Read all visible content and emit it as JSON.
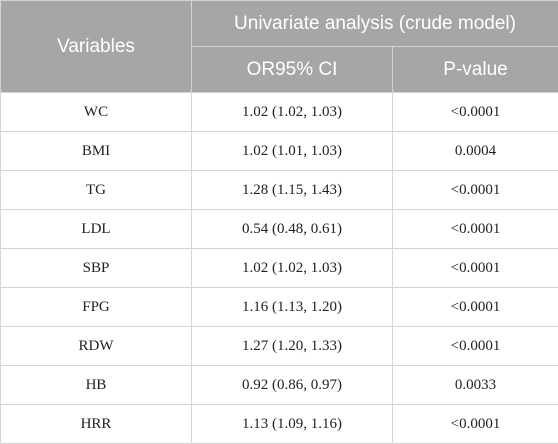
{
  "header": {
    "variables": "Variables",
    "group": "Univariate analysis (crude model)",
    "or_ci": "OR95% CI",
    "p_value": "P-value"
  },
  "rows": [
    {
      "variable": "WC",
      "or_ci": "1.02 (1.02, 1.03)",
      "p": "<0.0001"
    },
    {
      "variable": "BMI",
      "or_ci": "1.02 (1.01, 1.03)",
      "p": "0.0004"
    },
    {
      "variable": "TG",
      "or_ci": "1.28 (1.15, 1.43)",
      "p": "<0.0001"
    },
    {
      "variable": "LDL",
      "or_ci": "0.54 (0.48, 0.61)",
      "p": "<0.0001"
    },
    {
      "variable": "SBP",
      "or_ci": "1.02 (1.02, 1.03)",
      "p": "<0.0001"
    },
    {
      "variable": "FPG",
      "or_ci": "1.16 (1.13, 1.20)",
      "p": "<0.0001"
    },
    {
      "variable": "RDW",
      "or_ci": "1.27 (1.20, 1.33)",
      "p": "<0.0001"
    },
    {
      "variable": "HB",
      "or_ci": "0.92 (0.86, 0.97)",
      "p": "0.0033"
    },
    {
      "variable": "HRR",
      "or_ci": "1.13 (1.09, 1.16)",
      "p": "<0.0001"
    }
  ]
}
